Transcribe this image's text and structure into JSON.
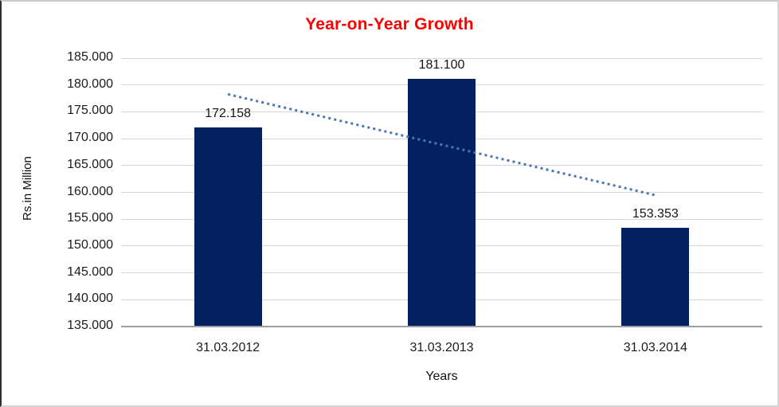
{
  "chart_data": {
    "type": "bar",
    "title": "Year-on-Year Growth",
    "title_color": "#fe0000",
    "xlabel": "Years",
    "ylabel": "Rs.in Million",
    "categories": [
      "31.03.2012",
      "31.03.2013",
      "31.03.2014"
    ],
    "values": [
      172.158,
      181.1,
      153.353
    ],
    "value_labels": [
      "172.158",
      "181.100",
      "153.353"
    ],
    "ylim": [
      135,
      185
    ],
    "ytick_step": 5,
    "ytick_labels": [
      "135.000",
      "140.000",
      "145.000",
      "150.000",
      "155.000",
      "160.000",
      "165.000",
      "170.000",
      "175.000",
      "180.000",
      "185.000"
    ],
    "grid": true,
    "legend": "none",
    "bar_color": "#03215f",
    "trendline": {
      "type": "linear",
      "style": "dotted",
      "color": "#4a76b5"
    }
  }
}
